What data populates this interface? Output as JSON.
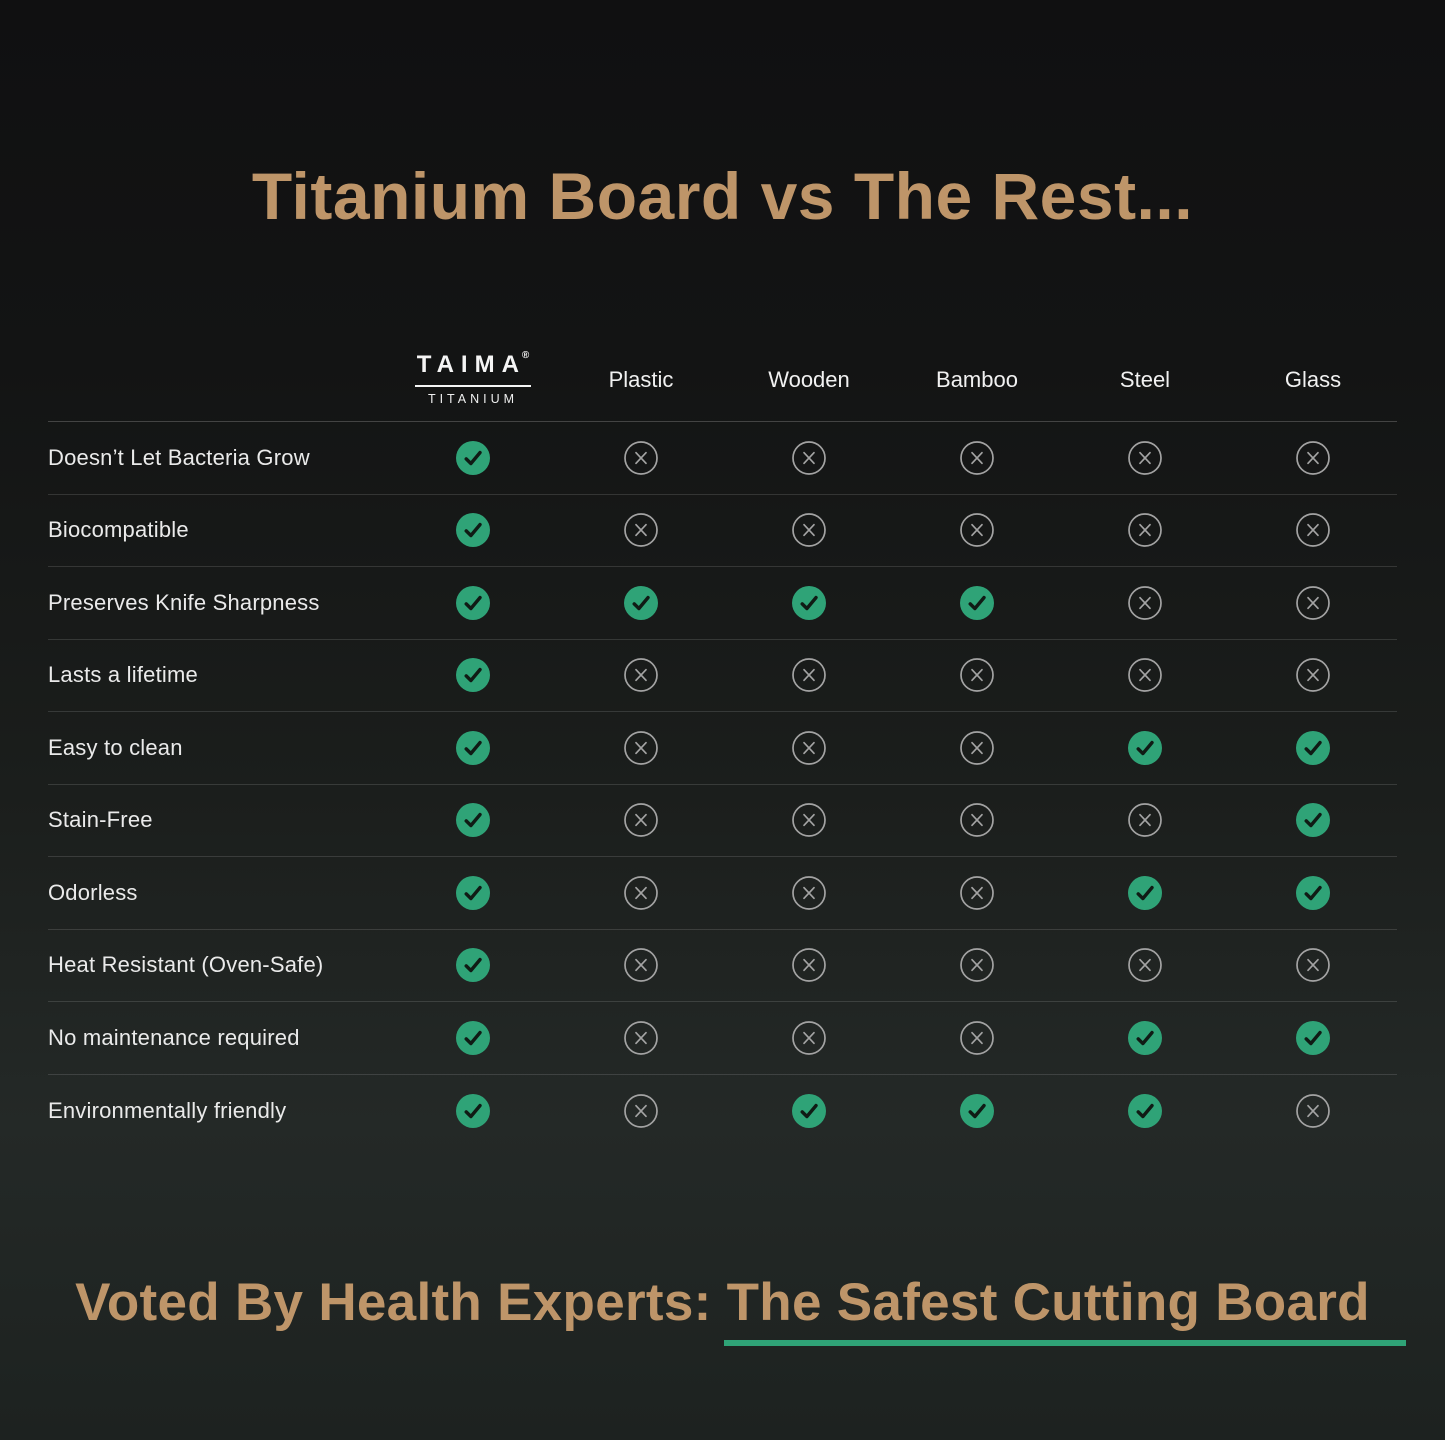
{
  "title": "Titanium Board vs The Rest...",
  "brand": {
    "name": "TAIMA",
    "registered_mark": "®",
    "subtitle": "TITANIUM"
  },
  "chart_data": {
    "type": "table",
    "title": "Titanium Board vs The Rest...",
    "columns": [
      "TAIMA TITANIUM",
      "Plastic",
      "Wooden",
      "Bamboo",
      "Steel",
      "Glass"
    ],
    "rows": [
      {
        "label": "Doesn’t Let Bacteria Grow",
        "values": [
          true,
          false,
          false,
          false,
          false,
          false
        ]
      },
      {
        "label": "Biocompatible",
        "values": [
          true,
          false,
          false,
          false,
          false,
          false
        ]
      },
      {
        "label": "Preserves Knife Sharpness",
        "values": [
          true,
          true,
          true,
          true,
          false,
          false
        ]
      },
      {
        "label": "Lasts a lifetime",
        "values": [
          true,
          false,
          false,
          false,
          false,
          false
        ]
      },
      {
        "label": "Easy to clean",
        "values": [
          true,
          false,
          false,
          false,
          true,
          true
        ]
      },
      {
        "label": "Stain-Free",
        "values": [
          true,
          false,
          false,
          false,
          false,
          true
        ]
      },
      {
        "label": "Odorless",
        "values": [
          true,
          false,
          false,
          false,
          true,
          true
        ]
      },
      {
        "label": "Heat Resistant (Oven-Safe)",
        "values": [
          true,
          false,
          false,
          false,
          false,
          false
        ]
      },
      {
        "label": "No maintenance required",
        "values": [
          true,
          false,
          false,
          false,
          true,
          true
        ]
      },
      {
        "label": "Environmentally friendly",
        "values": [
          true,
          false,
          true,
          true,
          true,
          false
        ]
      }
    ],
    "value_legend": {
      "true_icon": "check-icon",
      "false_icon": "cross-icon"
    }
  },
  "footer": {
    "prefix": "Voted By Health Experts: ",
    "highlight": "The Safest Cutting Board"
  },
  "colors": {
    "accent_gold": "#be9569",
    "check_green": "#2fa377",
    "check_mark_dark": "#101b15",
    "cross_gray": "#a3a3a3",
    "underline_green": "#2fa377",
    "background_top": "#101011",
    "background_bottom": "#1d2220",
    "row_label_text": "#eaeaea",
    "header_text": "#f1f1f1"
  }
}
